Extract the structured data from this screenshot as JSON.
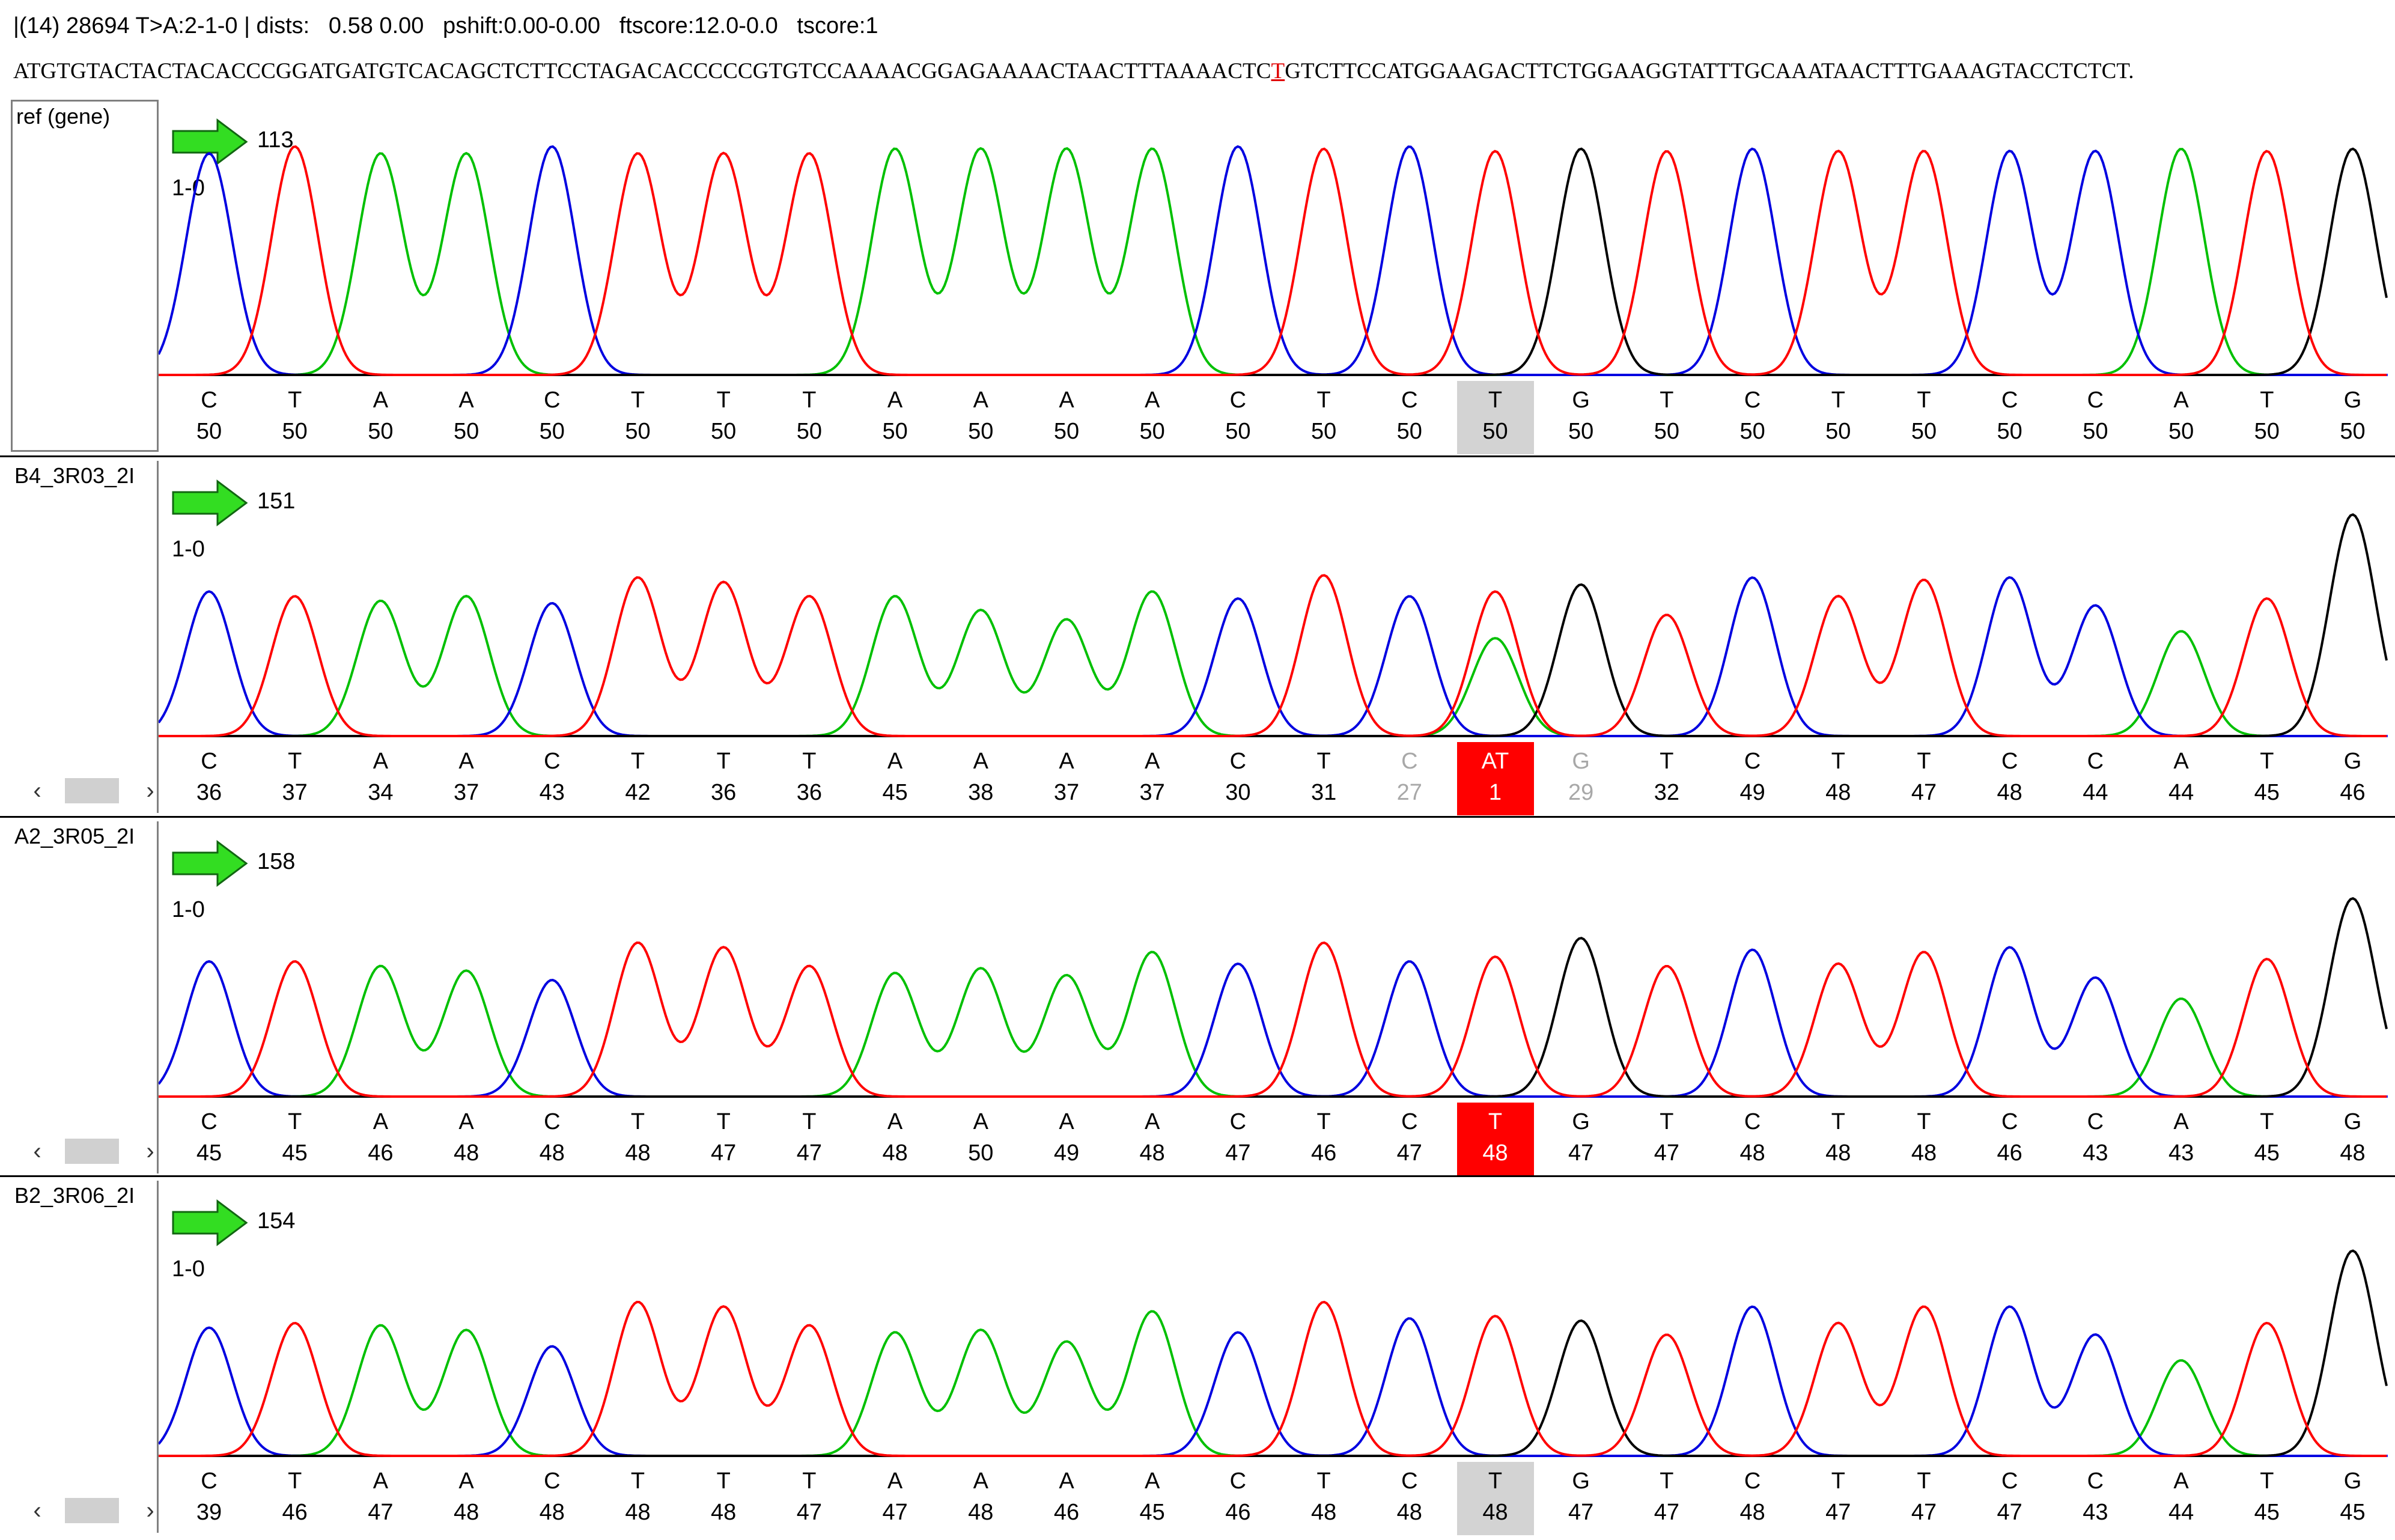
{
  "info_bar": "|(14) 28694 T>A:2-1-0 | dists:   0.58 0.00   pshift:0.00-0.00   ftscore:12.0-0.0   tscore:1",
  "reference_sequence": {
    "before": "ATGTGTACTACTACACCCGGATGATGTCACAGCTCTTCCTAGACACCCCCGTGTCCAAAACGGAGAAAACTAACTTTAAAACTC",
    "highlight": "T",
    "after": "GTCTTCCATGGAAGACTTCTGGAAGGTATTTGCAAATAACTTTGAAAGTACCTCTCT."
  },
  "colors": {
    "A": "#00c000",
    "C": "#0000e0",
    "G": "#000000",
    "T": "#ff0000",
    "baseline": "#3030ff"
  },
  "lanes": [
    {
      "label": "ref (gene)",
      "position": "113",
      "scale": "1-0",
      "has_scrollbar": false,
      "bases": [
        "C",
        "T",
        "A",
        "A",
        "C",
        "T",
        "T",
        "T",
        "A",
        "A",
        "A",
        "A",
        "C",
        "T",
        "C",
        "T",
        "G",
        "T",
        "C",
        "T",
        "T",
        "C",
        "C",
        "A",
        "T",
        "G"
      ],
      "quals": [
        "50",
        "50",
        "50",
        "50",
        "50",
        "50",
        "50",
        "50",
        "50",
        "50",
        "50",
        "50",
        "50",
        "50",
        "50",
        "50",
        "50",
        "50",
        "50",
        "50",
        "50",
        "50",
        "50",
        "50",
        "50",
        "50"
      ],
      "peaks": [
        0.95,
        0.98,
        0.95,
        0.95,
        0.98,
        0.95,
        0.95,
        0.95,
        0.97,
        0.97,
        0.97,
        0.97,
        0.98,
        0.97,
        0.98,
        0.96,
        0.97,
        0.96,
        0.97,
        0.96,
        0.96,
        0.96,
        0.96,
        0.97,
        0.96,
        0.97
      ],
      "highlight": {
        "index": 15,
        "style": "grey"
      },
      "faint": []
    },
    {
      "label": "B4_3R03_2I",
      "position": "151",
      "scale": "1-0",
      "has_scrollbar": true,
      "bases": [
        "C",
        "T",
        "A",
        "A",
        "C",
        "T",
        "T",
        "T",
        "A",
        "A",
        "A",
        "A",
        "C",
        "T",
        "C",
        "AT",
        "G",
        "T",
        "C",
        "T",
        "T",
        "C",
        "C",
        "A",
        "T",
        "G"
      ],
      "quals": [
        "36",
        "37",
        "34",
        "37",
        "43",
        "42",
        "36",
        "36",
        "45",
        "38",
        "37",
        "37",
        "30",
        "31",
        "27",
        "1",
        "29",
        "32",
        "49",
        "48",
        "47",
        "48",
        "44",
        "44",
        "45",
        "46"
      ],
      "peaks": [
        0.62,
        0.6,
        0.58,
        0.6,
        0.57,
        0.68,
        0.66,
        0.6,
        0.6,
        0.54,
        0.5,
        0.62,
        0.59,
        0.69,
        0.6,
        0.62,
        0.65,
        0.52,
        0.68,
        0.6,
        0.67,
        0.68,
        0.56,
        0.45,
        0.59,
        0.95
      ],
      "secondary": [
        {
          "index": 15,
          "base": "A",
          "peak": 0.42
        }
      ],
      "highlight": {
        "index": 15,
        "style": "red"
      },
      "faint": [
        14,
        16
      ]
    },
    {
      "label": "A2_3R05_2I",
      "position": "158",
      "scale": "1-0",
      "has_scrollbar": true,
      "bases": [
        "C",
        "T",
        "A",
        "A",
        "C",
        "T",
        "T",
        "T",
        "A",
        "A",
        "A",
        "A",
        "C",
        "T",
        "C",
        "T",
        "G",
        "T",
        "C",
        "T",
        "T",
        "C",
        "C",
        "A",
        "T",
        "G"
      ],
      "quals": [
        "45",
        "45",
        "46",
        "48",
        "48",
        "48",
        "47",
        "47",
        "48",
        "50",
        "49",
        "48",
        "47",
        "46",
        "47",
        "48",
        "47",
        "47",
        "48",
        "48",
        "48",
        "46",
        "43",
        "43",
        "45",
        "48"
      ],
      "peaks": [
        0.58,
        0.58,
        0.56,
        0.54,
        0.5,
        0.66,
        0.64,
        0.56,
        0.53,
        0.55,
        0.52,
        0.62,
        0.57,
        0.66,
        0.58,
        0.6,
        0.68,
        0.56,
        0.63,
        0.57,
        0.62,
        0.64,
        0.51,
        0.42,
        0.59,
        0.85
      ],
      "highlight": {
        "index": 15,
        "style": "red"
      },
      "faint": []
    },
    {
      "label": "B2_3R06_2I",
      "position": "154",
      "scale": "1-0",
      "has_scrollbar": true,
      "bases": [
        "C",
        "T",
        "A",
        "A",
        "C",
        "T",
        "T",
        "T",
        "A",
        "A",
        "A",
        "A",
        "C",
        "T",
        "C",
        "T",
        "G",
        "T",
        "C",
        "T",
        "T",
        "C",
        "C",
        "A",
        "T",
        "G"
      ],
      "quals": [
        "39",
        "46",
        "47",
        "48",
        "48",
        "48",
        "48",
        "47",
        "47",
        "48",
        "46",
        "45",
        "46",
        "48",
        "48",
        "48",
        "47",
        "47",
        "48",
        "47",
        "47",
        "47",
        "43",
        "44",
        "45",
        "45"
      ],
      "peaks": [
        0.55,
        0.57,
        0.56,
        0.54,
        0.47,
        0.66,
        0.64,
        0.56,
        0.53,
        0.54,
        0.49,
        0.62,
        0.53,
        0.66,
        0.59,
        0.6,
        0.58,
        0.52,
        0.64,
        0.57,
        0.64,
        0.64,
        0.52,
        0.41,
        0.57,
        0.88
      ],
      "highlight": {
        "index": 15,
        "style": "grey"
      },
      "faint": []
    }
  ]
}
